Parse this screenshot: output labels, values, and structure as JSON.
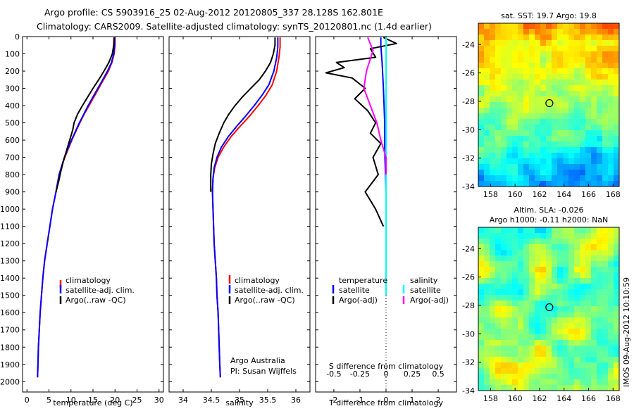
{
  "header": {
    "line1": "Argo profile: CS 5903916_25 02-Aug-2012 20120805_337 28.128S 162.801E",
    "line2": "Climatology: CARS2009. Satellite-adjusted climatology: synTS_20120801.nc (1.4d earlier)"
  },
  "credits": {
    "org": "Argo Australia",
    "pi": "PI: Susan Wijffels"
  },
  "footer": "IMOS 09-Aug-2012 10:10:59",
  "colors": {
    "climatology": "#ff0000",
    "satellite": "#0000ff",
    "argo": "#000000",
    "sal_satellite": "#00ffff",
    "sal_argo": "#ff00ff"
  },
  "chart_data": [
    {
      "type": "line",
      "xlabel": "temperature (deg C)",
      "ylabel": "",
      "xlim": [
        -1,
        31
      ],
      "ylim": [
        2060,
        0
      ],
      "xticks": [
        "0",
        "5",
        "10",
        "15",
        "20",
        "25",
        "30"
      ],
      "yticks": [
        "0",
        "100",
        "200",
        "300",
        "400",
        "500",
        "600",
        "700",
        "800",
        "900",
        "1000",
        "1100",
        "1200",
        "1300",
        "1400",
        "1500",
        "1600",
        "1700",
        "1800",
        "1900",
        "2000"
      ],
      "legend": {
        "placement": "lower-right",
        "entries": [
          "climatology",
          "satellite-adj. clim.",
          "Argo(..raw -QC)"
        ]
      },
      "series": [
        {
          "name": "climatology",
          "color": "#ff0000",
          "points": [
            [
              20.0,
              5
            ],
            [
              20.0,
              50
            ],
            [
              19.8,
              100
            ],
            [
              19.3,
              150
            ],
            [
              18.5,
              200
            ],
            [
              17.4,
              250
            ],
            [
              16.3,
              300
            ],
            [
              15.2,
              350
            ],
            [
              14.1,
              400
            ],
            [
              13.0,
              450
            ],
            [
              12.0,
              500
            ],
            [
              11.1,
              550
            ],
            [
              10.2,
              600
            ],
            [
              9.4,
              650
            ],
            [
              8.6,
              700
            ],
            [
              7.9,
              750
            ],
            [
              7.3,
              800
            ],
            [
              6.6,
              900
            ],
            [
              5.8,
              1000
            ],
            [
              5.2,
              1100
            ],
            [
              4.6,
              1200
            ],
            [
              4.0,
              1300
            ],
            [
              3.6,
              1400
            ],
            [
              3.3,
              1500
            ],
            [
              3.0,
              1600
            ],
            [
              2.8,
              1700
            ],
            [
              2.6,
              1800
            ],
            [
              2.5,
              1900
            ],
            [
              2.4,
              1975
            ]
          ]
        },
        {
          "name": "satellite-adj. clim.",
          "color": "#0000ff",
          "points": [
            [
              19.9,
              5
            ],
            [
              19.9,
              50
            ],
            [
              19.7,
              100
            ],
            [
              19.2,
              150
            ],
            [
              18.3,
              200
            ],
            [
              17.2,
              250
            ],
            [
              16.1,
              300
            ],
            [
              15.0,
              350
            ],
            [
              13.9,
              400
            ],
            [
              12.9,
              450
            ],
            [
              11.9,
              500
            ],
            [
              11.0,
              550
            ],
            [
              10.1,
              600
            ],
            [
              9.3,
              650
            ],
            [
              8.5,
              700
            ],
            [
              7.9,
              750
            ],
            [
              7.3,
              800
            ],
            [
              6.6,
              900
            ],
            [
              5.8,
              1000
            ],
            [
              5.2,
              1100
            ],
            [
              4.6,
              1200
            ],
            [
              4.0,
              1300
            ],
            [
              3.6,
              1400
            ],
            [
              3.3,
              1500
            ],
            [
              3.0,
              1600
            ],
            [
              2.8,
              1700
            ],
            [
              2.6,
              1800
            ],
            [
              2.5,
              1900
            ],
            [
              2.4,
              1975
            ]
          ]
        },
        {
          "name": "Argo(..raw -QC)",
          "color": "#000000",
          "points": [
            [
              19.8,
              5
            ],
            [
              19.7,
              50
            ],
            [
              19.4,
              100
            ],
            [
              18.6,
              150
            ],
            [
              17.5,
              200
            ],
            [
              16.3,
              250
            ],
            [
              15.0,
              300
            ],
            [
              13.8,
              350
            ],
            [
              12.6,
              400
            ],
            [
              11.5,
              450
            ],
            [
              10.7,
              500
            ],
            [
              10.4,
              540
            ],
            [
              9.7,
              600
            ],
            [
              9.0,
              660
            ],
            [
              8.3,
              720
            ],
            [
              7.7,
              780
            ],
            [
              7.2,
              840
            ],
            [
              6.6,
              900
            ]
          ]
        }
      ]
    },
    {
      "type": "line",
      "xlabel": "salinity",
      "ylabel": "",
      "xlim": [
        33.75,
        36.25
      ],
      "ylim": [
        2060,
        0
      ],
      "xticks": [
        "34",
        "34.5",
        "35",
        "35.5",
        "36"
      ],
      "legend": {
        "placement": "lower-right",
        "entries": [
          "climatology",
          "satellite-adj. clim.",
          "Argo(..raw -QC)"
        ]
      },
      "series": [
        {
          "name": "climatology",
          "color": "#ff0000",
          "points": [
            [
              35.72,
              5
            ],
            [
              35.72,
              60
            ],
            [
              35.7,
              120
            ],
            [
              35.66,
              200
            ],
            [
              35.58,
              280
            ],
            [
              35.47,
              340
            ],
            [
              35.33,
              400
            ],
            [
              35.18,
              460
            ],
            [
              35.01,
              520
            ],
            [
              34.85,
              580
            ],
            [
              34.72,
              640
            ],
            [
              34.62,
              700
            ],
            [
              34.56,
              760
            ],
            [
              34.53,
              820
            ],
            [
              34.52,
              900
            ],
            [
              34.53,
              1000
            ],
            [
              34.54,
              1100
            ],
            [
              34.55,
              1200
            ],
            [
              34.57,
              1300
            ],
            [
              34.59,
              1400
            ],
            [
              34.6,
              1500
            ],
            [
              34.62,
              1600
            ],
            [
              34.63,
              1700
            ],
            [
              34.64,
              1800
            ],
            [
              34.65,
              1900
            ],
            [
              34.66,
              1975
            ]
          ]
        },
        {
          "name": "satellite-adj. clim.",
          "color": "#0000ff",
          "points": [
            [
              35.68,
              5
            ],
            [
              35.68,
              60
            ],
            [
              35.66,
              120
            ],
            [
              35.61,
              200
            ],
            [
              35.52,
              280
            ],
            [
              35.4,
              340
            ],
            [
              35.26,
              400
            ],
            [
              35.11,
              460
            ],
            [
              34.95,
              520
            ],
            [
              34.8,
              580
            ],
            [
              34.68,
              640
            ],
            [
              34.6,
              700
            ],
            [
              34.55,
              760
            ],
            [
              34.53,
              820
            ],
            [
              34.52,
              900
            ],
            [
              34.53,
              1000
            ],
            [
              34.54,
              1100
            ],
            [
              34.55,
              1200
            ],
            [
              34.57,
              1300
            ],
            [
              34.59,
              1400
            ],
            [
              34.6,
              1500
            ],
            [
              34.62,
              1600
            ],
            [
              34.63,
              1700
            ],
            [
              34.64,
              1800
            ],
            [
              34.65,
              1900
            ],
            [
              34.66,
              1975
            ]
          ]
        },
        {
          "name": "Argo(..raw -QC)",
          "color": "#000000",
          "points": [
            [
              35.63,
              5
            ],
            [
              35.63,
              50
            ],
            [
              35.6,
              100
            ],
            [
              35.55,
              150
            ],
            [
              35.46,
              200
            ],
            [
              35.35,
              250
            ],
            [
              35.2,
              300
            ],
            [
              35.05,
              350
            ],
            [
              34.92,
              400
            ],
            [
              34.81,
              450
            ],
            [
              34.72,
              500
            ],
            [
              34.64,
              560
            ],
            [
              34.57,
              620
            ],
            [
              34.53,
              680
            ],
            [
              34.5,
              740
            ],
            [
              34.49,
              800
            ],
            [
              34.49,
              900
            ]
          ]
        }
      ]
    },
    {
      "type": "line",
      "xlabel": "T difference from climatology",
      "x2label": "S difference from climatology",
      "xlim": [
        -2.7,
        2.7
      ],
      "ylim": [
        2060,
        0
      ],
      "xticks": [
        "-2",
        "-1",
        "0",
        "1",
        "2"
      ],
      "x2ticks": [
        "-0.5",
        "-0.25",
        "0",
        "0.25",
        "0.5"
      ],
      "legend": {
        "placement": "lower",
        "left_title": "temperature",
        "right_title": "salinity",
        "entries": [
          "satellite",
          "Argo(-adj)",
          "satellite",
          "Argo(-adj)"
        ]
      },
      "series": [
        {
          "name": "satellite",
          "color": "#0000ff",
          "points": [
            [
              -0.2,
              5
            ],
            [
              -0.2,
              50
            ],
            [
              -0.15,
              150
            ],
            [
              -0.1,
              300
            ],
            [
              -0.05,
              500
            ],
            [
              -0.05,
              650
            ],
            [
              0,
              900
            ],
            [
              0,
              1300
            ],
            [
              0,
              1500
            ]
          ]
        },
        {
          "name": "Argo(-adj)",
          "color": "#000000",
          "points": [
            [
              -0.1,
              5
            ],
            [
              0.4,
              40
            ],
            [
              -0.6,
              70
            ],
            [
              -0.4,
              120
            ],
            [
              -1.9,
              150
            ],
            [
              -1.6,
              180
            ],
            [
              -2.3,
              210
            ],
            [
              -1.3,
              240
            ],
            [
              -0.8,
              300
            ],
            [
              -1.2,
              360
            ],
            [
              -0.7,
              430
            ],
            [
              -0.4,
              500
            ],
            [
              -0.6,
              560
            ],
            [
              -0.2,
              620
            ],
            [
              -0.5,
              700
            ],
            [
              -0.3,
              800
            ],
            [
              -0.8,
              900
            ],
            [
              -0.4,
              1000
            ],
            [
              -0.1,
              1100
            ]
          ]
        },
        {
          "name": "satellite",
          "color": "#00ffff",
          "points": [
            [
              0,
              5
            ],
            [
              0,
              50
            ],
            [
              0,
              150
            ],
            [
              0,
              400
            ],
            [
              0,
              700
            ],
            [
              0,
              1000
            ],
            [
              0,
              1300
            ],
            [
              0,
              1500
            ]
          ]
        },
        {
          "name": "Argo(-adj)",
          "color": "#ff00ff",
          "points": [
            [
              -0.7,
              5
            ],
            [
              -0.5,
              80
            ],
            [
              -0.75,
              200
            ],
            [
              -0.85,
              300
            ],
            [
              -0.6,
              400
            ],
            [
              -0.35,
              500
            ],
            [
              -0.2,
              600
            ],
            [
              0,
              700
            ],
            [
              0,
              800
            ]
          ]
        }
      ]
    },
    {
      "type": "heatmap",
      "title": "sat. SST: 19.7 Argo: 19.8",
      "xlim": [
        157,
        168.5
      ],
      "ylim": [
        -34,
        -22.5
      ],
      "xticks": [
        "158",
        "160",
        "162",
        "164",
        "166",
        "168"
      ],
      "yticks": [
        "-24",
        "-26",
        "-28",
        "-30",
        "-32",
        "-34"
      ],
      "marker": {
        "lon": 162.8,
        "lat": -28.13
      }
    },
    {
      "type": "heatmap",
      "title": "Altim. SLA: -0.026",
      "subtitle": "Argo h1000: -0.11 h2000: NaN",
      "xlim": [
        157,
        168.5
      ],
      "ylim": [
        -34,
        -22.5
      ],
      "xticks": [
        "158",
        "160",
        "162",
        "164",
        "166",
        "168"
      ],
      "yticks": [
        "-24",
        "-26",
        "-28",
        "-30",
        "-32",
        "-34"
      ],
      "marker": {
        "lon": 162.8,
        "lat": -28.13
      }
    }
  ]
}
